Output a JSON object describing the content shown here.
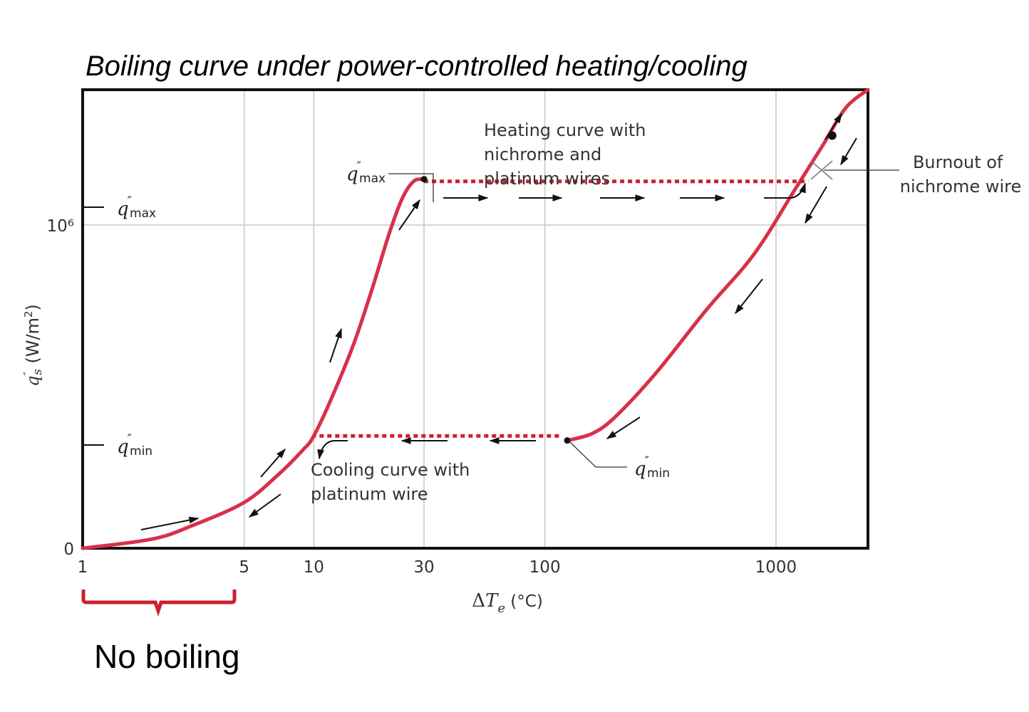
{
  "chart_data": {
    "type": "line",
    "title": "Boiling curve under power-controlled heating/cooling",
    "xlabel": "ΔTe (°C)",
    "ylabel": "q″s (W/m²)",
    "x_scale": "log",
    "xlim": [
      1,
      2500
    ],
    "x_ticks": [
      {
        "value": 1,
        "label": "1"
      },
      {
        "value": 5,
        "label": "5"
      },
      {
        "value": 10,
        "label": "10"
      },
      {
        "value": 30,
        "label": "30"
      },
      {
        "value": 100,
        "label": "100"
      },
      {
        "value": 1000,
        "label": "1000"
      }
    ],
    "y_ticks": [
      {
        "value": 0,
        "label": "0"
      },
      {
        "value": 1000000,
        "label": "10⁶"
      }
    ],
    "grid": true,
    "colors": {
      "curve": "#d9304a",
      "jump": "#cc1f2e",
      "bracket": "#cc1f2e"
    },
    "series": [
      {
        "points": [
          [
            1,
            0.0
          ],
          [
            2,
            0.02
          ],
          [
            3,
            0.05
          ],
          [
            5,
            0.1
          ],
          [
            7,
            0.16
          ],
          [
            9,
            0.215
          ],
          [
            10,
            0.245
          ],
          [
            12,
            0.33
          ],
          [
            15,
            0.45
          ],
          [
            18,
            0.57
          ],
          [
            21,
            0.68
          ],
          [
            24,
            0.76
          ],
          [
            27,
            0.8
          ],
          [
            30,
            0.805
          ]
        ]
      },
      {
        "points": [
          [
            125,
            0.235
          ],
          [
            160,
            0.25
          ],
          [
            200,
            0.285
          ],
          [
            300,
            0.38
          ],
          [
            500,
            0.52
          ],
          [
            800,
            0.64
          ],
          [
            1200,
            0.78
          ],
          [
            1600,
            0.88
          ],
          [
            2000,
            0.96
          ],
          [
            2500,
            1.0
          ]
        ]
      }
    ],
    "transitions": [
      {
        "from": [
          30,
          0.8
        ],
        "to": [
          1380,
          0.8
        ]
      },
      {
        "from": [
          115,
          0.245
        ],
        "to": [
          10,
          0.245
        ]
      }
    ],
    "markers": [
      {
        "name": "q_max",
        "x": 30,
        "y": 0.805
      },
      {
        "name": "q_min",
        "x": 125,
        "y": 0.235
      },
      {
        "name": "burnout",
        "x": 1750,
        "y": 0.9
      }
    ],
    "annotations": {
      "q_max_axis": "q″max",
      "q_min_axis": "q″min",
      "q_max_pt": "q″max",
      "q_min_pt": "q″min",
      "heating": [
        "Heating curve with",
        "nichrome and",
        "platinum wires"
      ],
      "cooling": [
        "Cooling curve with",
        "platinum wire"
      ],
      "burnout": [
        "Burnout of",
        "nichrome wire"
      ],
      "no_boiling": "No boiling"
    }
  }
}
